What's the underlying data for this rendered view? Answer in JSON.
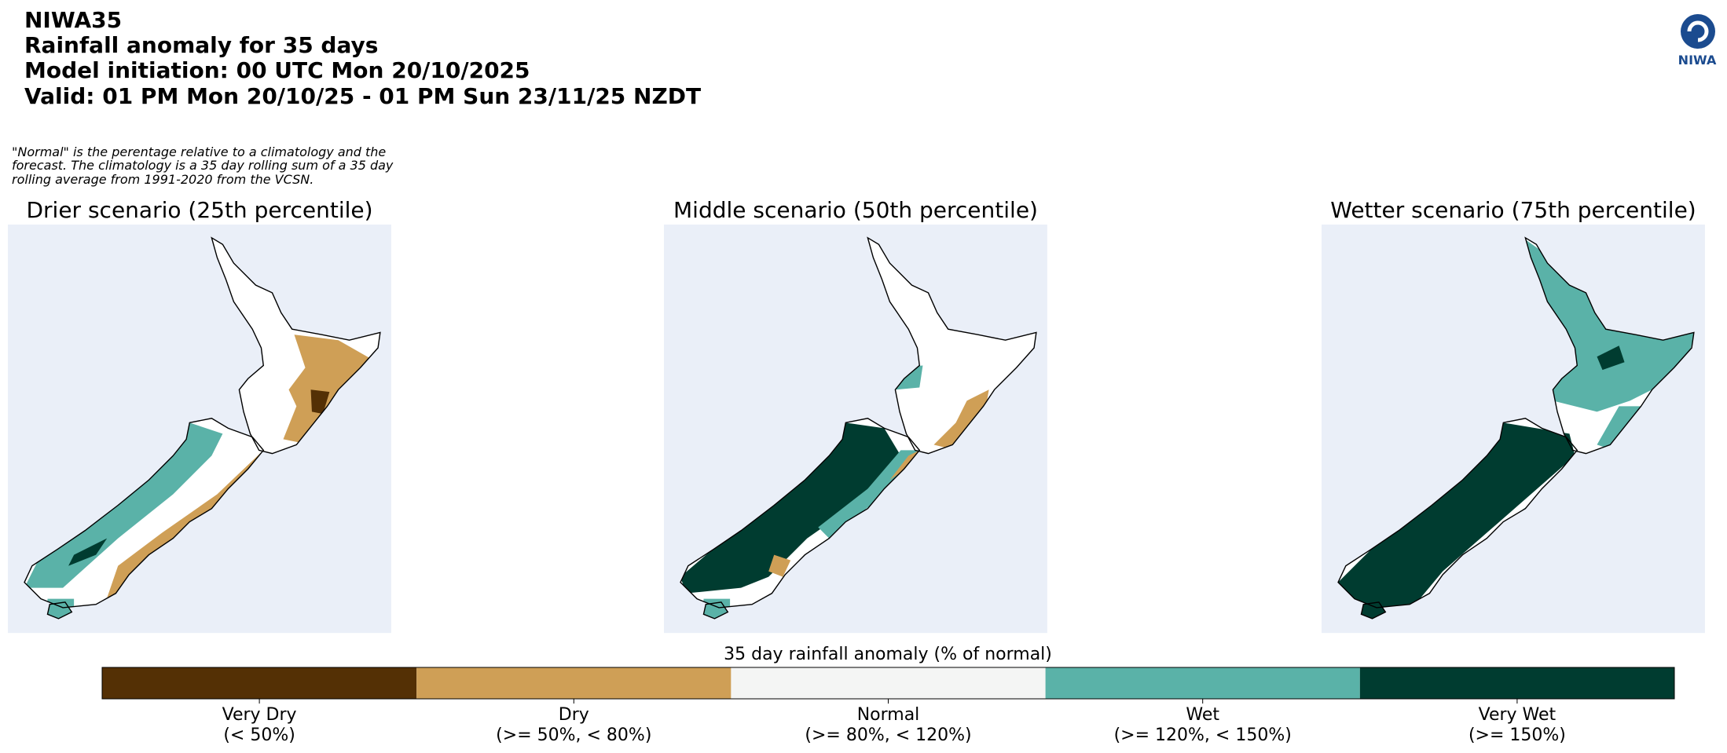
{
  "header": {
    "lines": [
      "NIWA35",
      "Rainfall anomaly for 35 days",
      "Model initiation: 00 UTC Mon 20/10/2025",
      "Valid: 01 PM Mon 20/10/25 - 01 PM Sun 23/11/25 NZDT"
    ]
  },
  "logo": {
    "text": "NIWA"
  },
  "note": {
    "lines": [
      "\"Normal\" is the perentage relative to a climatology and the",
      "forecast. The climatology is a 35 day rolling sum of a 35 day",
      "rolling average from 1991-2020 from the VCSN."
    ]
  },
  "panels": [
    {
      "title": "Drier scenario (25th percentile)"
    },
    {
      "title": "Middle scenario (50th percentile)"
    },
    {
      "title": "Wetter scenario (75th percentile)"
    }
  ],
  "colorbar": {
    "title": "35 day rainfall anomaly (% of normal)",
    "items": [
      {
        "label": "Very Dry",
        "range": "(< 50%)",
        "color": "#543005"
      },
      {
        "label": "Dry",
        "range": "(>= 50%, < 80%)",
        "color": "#cf9f56"
      },
      {
        "label": "Normal",
        "range": "(>= 80%, < 120%)",
        "color": "#f4f5f4"
      },
      {
        "label": "Wet",
        "range": "(>= 120%, < 150%)",
        "color": "#5ab2a8"
      },
      {
        "label": "Very Wet",
        "range": "(>= 150%)",
        "color": "#003c30"
      }
    ]
  }
}
